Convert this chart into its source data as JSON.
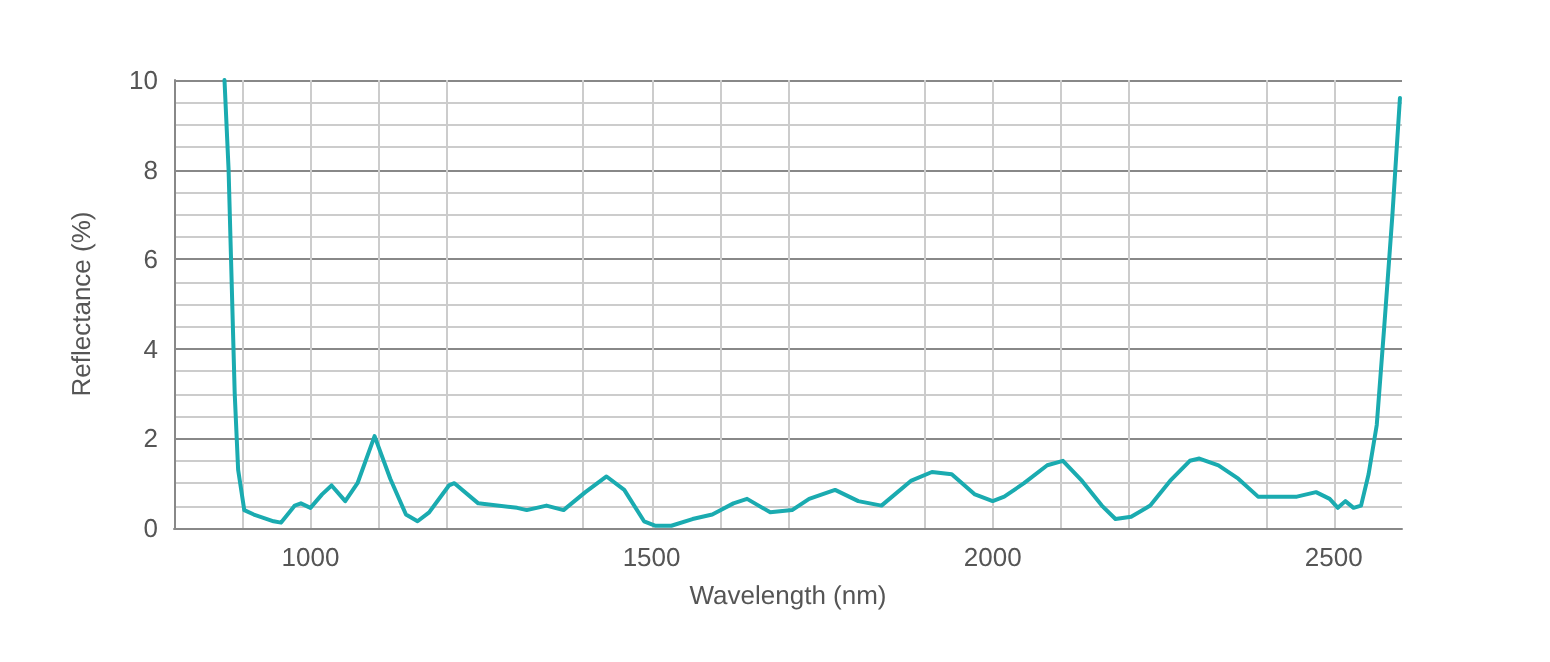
{
  "chart_data": {
    "type": "line",
    "xlabel": "Wavelength (nm)",
    "ylabel": "Reflectance (%)",
    "xlim": [
      800,
      2600
    ],
    "xticks": [
      1000,
      1500,
      2000,
      2500
    ],
    "ylim": [
      0,
      10
    ],
    "yticks": [
      0,
      2,
      4,
      6,
      8,
      10
    ],
    "grid": true,
    "marker": "none",
    "line_style": "solid",
    "series": [
      {
        "color": "#1aabb0",
        "x": [
          874,
          880,
          889,
          894,
          903,
          917,
          946,
          957,
          977,
          986,
          1000,
          1017,
          1031,
          1051,
          1069,
          1094,
          1117,
          1140,
          1157,
          1174,
          1203,
          1211,
          1246,
          1303,
          1317,
          1346,
          1371,
          1403,
          1434,
          1460,
          1489,
          1506,
          1529,
          1560,
          1589,
          1620,
          1640,
          1674,
          1706,
          1731,
          1769,
          1803,
          1837,
          1880,
          1911,
          1940,
          1974,
          2000,
          2017,
          2046,
          2080,
          2103,
          2131,
          2160,
          2180,
          2203,
          2231,
          2260,
          2289,
          2303,
          2331,
          2360,
          2389,
          2417,
          2446,
          2474,
          2494,
          2506,
          2517,
          2529,
          2540,
          2551,
          2563,
          2574,
          2586,
          2597
        ],
        "values": [
          10,
          8,
          3,
          1.3,
          0.4,
          0.3,
          0.15,
          0.12,
          0.5,
          0.55,
          0.45,
          0.75,
          0.95,
          0.6,
          1.0,
          2.05,
          1.1,
          0.3,
          0.15,
          0.35,
          0.95,
          1.0,
          0.55,
          0.45,
          0.4,
          0.5,
          0.4,
          0.8,
          1.15,
          0.85,
          0.15,
          0.05,
          0.05,
          0.2,
          0.3,
          0.55,
          0.65,
          0.35,
          0.4,
          0.65,
          0.85,
          0.6,
          0.5,
          1.05,
          1.25,
          1.2,
          0.75,
          0.6,
          0.7,
          1.0,
          1.4,
          1.5,
          1.05,
          0.5,
          0.2,
          0.25,
          0.5,
          1.05,
          1.5,
          1.55,
          1.4,
          1.1,
          0.7,
          0.7,
          0.7,
          0.8,
          0.65,
          0.45,
          0.6,
          0.45,
          0.5,
          1.2,
          2.3,
          4.5,
          7,
          9.6
        ]
      }
    ]
  }
}
